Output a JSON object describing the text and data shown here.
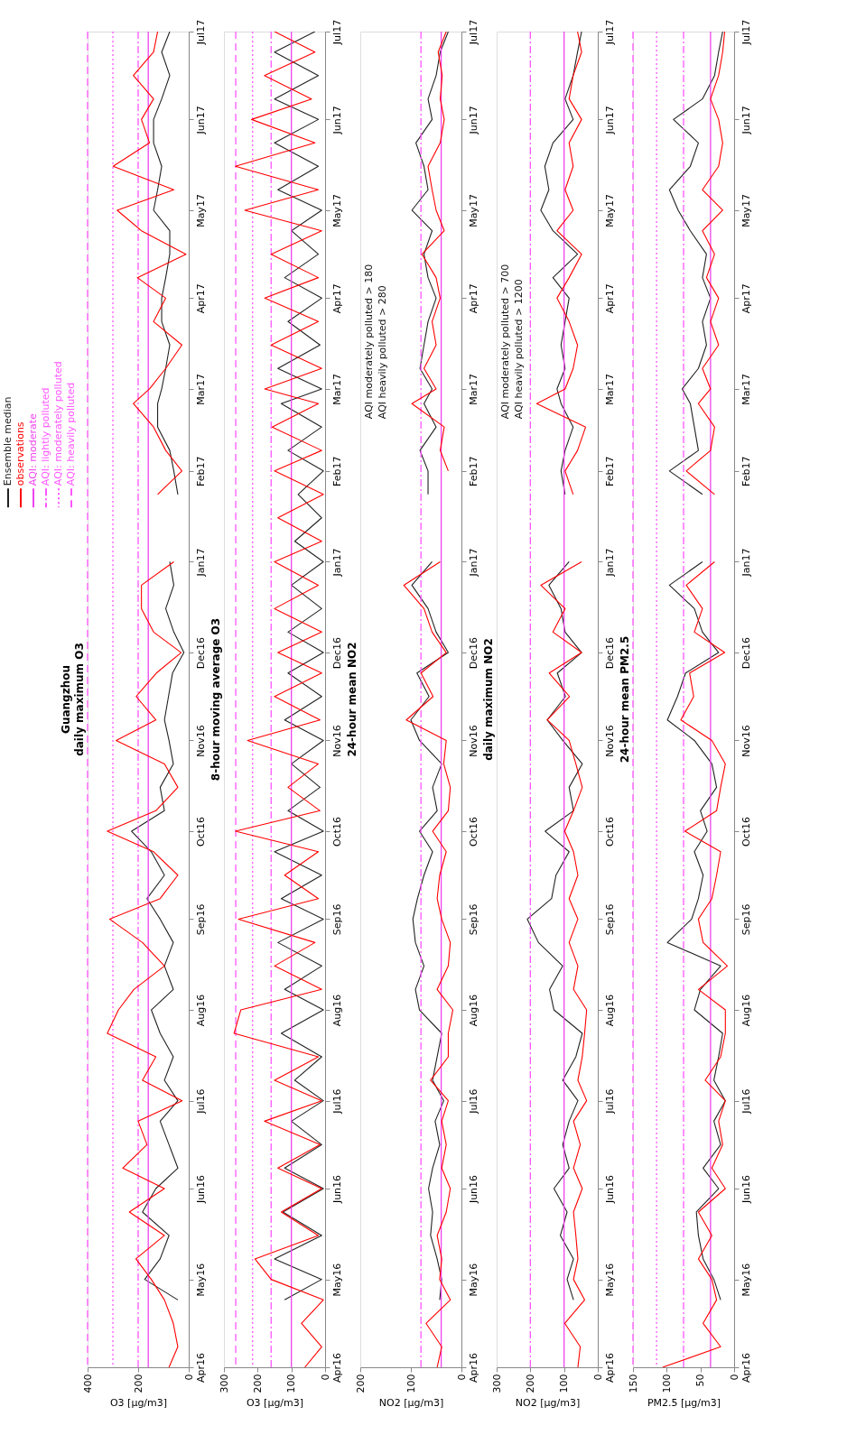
{
  "chart_data": [
    {
      "type": "line",
      "orientation": "horizontal",
      "title": "Guangzhou",
      "subtitle": "daily maximum O3",
      "xlabel": "O3 [µg/m3]",
      "legend": "top left",
      "grid": false,
      "x": [
        "2016-04-01",
        "2016-04-08",
        "2016-04-16",
        "2016-04-24",
        "2016-05-01",
        "2016-05-08",
        "2016-05-16",
        "2016-05-24",
        "2016-06-01",
        "2016-06-08",
        "2016-06-16",
        "2016-06-24",
        "2016-07-01",
        "2016-07-08",
        "2016-07-16",
        "2016-07-24",
        "2016-08-01",
        "2016-08-08",
        "2016-08-16",
        "2016-08-24",
        "2016-09-01",
        "2016-09-08",
        "2016-09-16",
        "2016-09-24",
        "2016-10-01",
        "2016-10-08",
        "2016-10-16",
        "2016-10-24",
        "2016-11-01",
        "2016-11-08",
        "2016-11-16",
        "2016-11-24",
        "2016-12-01",
        "2016-12-08",
        "2016-12-16",
        "2016-12-24",
        "2017-01-01",
        "2017-01-08",
        "2017-01-16",
        "2017-01-24",
        "2017-02-01",
        "2017-02-08",
        "2017-02-16",
        "2017-02-24",
        "2017-03-01",
        "2017-03-08",
        "2017-03-16",
        "2017-03-24",
        "2017-04-01",
        "2017-04-08",
        "2017-04-16",
        "2017-04-24",
        "2017-05-01",
        "2017-05-08",
        "2017-05-16",
        "2017-05-24",
        "2017-06-01",
        "2017-06-08",
        "2017-06-16",
        "2017-06-24",
        "2017-07-01"
      ],
      "ylim": [
        "2016-04-01",
        "2017-07-01"
      ],
      "yticks": [
        {
          "value": "2016-04-01",
          "label": "Apr16"
        },
        {
          "value": "2016-05-01",
          "label": "May16"
        },
        {
          "value": "2016-06-01",
          "label": "Jun16"
        },
        {
          "value": "2016-07-01",
          "label": "Jul16"
        },
        {
          "value": "2016-08-01",
          "label": "Aug16"
        },
        {
          "value": "2016-09-01",
          "label": "Sep16"
        },
        {
          "value": "2016-10-01",
          "label": "Oct16"
        },
        {
          "value": "2016-11-01",
          "label": "Nov16"
        },
        {
          "value": "2016-12-01",
          "label": "Dec16"
        },
        {
          "value": "2017-01-01",
          "label": "Jan17"
        },
        {
          "value": "2017-02-01",
          "label": "Feb17"
        },
        {
          "value": "2017-03-01",
          "label": "Mar17"
        },
        {
          "value": "2017-04-01",
          "label": "Apr17"
        },
        {
          "value": "2017-05-01",
          "label": "May17"
        },
        {
          "value": "2017-06-01",
          "label": "Jun17"
        },
        {
          "value": "2017-07-01",
          "label": "Jul17"
        }
      ],
      "xlim": [
        400,
        0
      ],
      "xticks": [
        400,
        200,
        0
      ],
      "ref_lines": [
        {
          "axis": "x",
          "value": 160,
          "label": "AQI: moderate",
          "color": "#ee44ee",
          "line_style": "solid"
        },
        {
          "axis": "x",
          "value": 200,
          "label": "AQI: lightly polluted",
          "color": "#ff55ff",
          "line_style": "dashdot"
        },
        {
          "axis": "x",
          "value": 300,
          "label": "AQI: moderately polluted",
          "color": "#ff55ff",
          "line_style": "dotted"
        },
        {
          "axis": "x",
          "value": 400,
          "label": "AQI: heavily polluted",
          "color": "#ff55ff",
          "line_style": "dashed"
        }
      ],
      "series": [
        {
          "name": "Ensemble median",
          "color": "#222222",
          "values": [
            null,
            null,
            null,
            43,
            174,
            113,
            78,
            183,
            130,
            43,
            78,
            113,
            43,
            96,
            61,
            113,
            148,
            61,
            96,
            61,
            113,
            165,
            96,
            148,
            226,
            96,
            113,
            61,
            78,
            96,
            80,
            64,
            19,
            59,
            91,
            59,
            75,
            null,
            null,
            43,
            59,
            75,
            123,
            123,
            107,
            91,
            75,
            107,
            107,
            91,
            75,
            75,
            139,
            123,
            107,
            139,
            139,
            107,
            75,
            107,
            75
          ]
        },
        {
          "name": "observations",
          "color": "#ff0000",
          "values": [
            78,
            43,
            61,
            96,
            148,
            209,
            96,
            235,
            96,
            261,
            165,
            200,
            26,
            183,
            130,
            322,
            278,
            217,
            96,
            183,
            313,
            113,
            43,
            139,
            322,
            130,
            43,
            96,
            287,
            130,
            208,
            128,
            30,
            139,
            187,
            187,
            59,
            null,
            null,
            123,
            27,
            91,
            139,
            219,
            155,
            91,
            27,
            139,
            91,
            203,
            11,
            187,
            283,
            59,
            299,
            155,
            187,
            139,
            219,
            139,
            123
          ]
        }
      ]
    },
    {
      "type": "line",
      "orientation": "horizontal",
      "title": "8-hour moving average O3",
      "xlabel": "O3 [µg/m3]",
      "grid": false,
      "x": [
        "2016-04-01",
        "2016-04-08",
        "2016-04-16",
        "2016-04-24",
        "2016-05-01",
        "2016-05-08",
        "2016-05-16",
        "2016-05-24",
        "2016-06-01",
        "2016-06-08",
        "2016-06-16",
        "2016-06-24",
        "2016-07-01",
        "2016-07-08",
        "2016-07-16",
        "2016-07-24",
        "2016-08-01",
        "2016-08-08",
        "2016-08-16",
        "2016-08-24",
        "2016-09-01",
        "2016-09-08",
        "2016-09-16",
        "2016-09-24",
        "2016-10-01",
        "2016-10-08",
        "2016-10-16",
        "2016-10-24",
        "2016-11-01",
        "2016-11-08",
        "2016-11-16",
        "2016-11-24",
        "2016-12-01",
        "2016-12-08",
        "2016-12-16",
        "2016-12-24",
        "2017-01-01",
        "2017-01-08",
        "2017-01-16",
        "2017-01-24",
        "2017-02-01",
        "2017-02-08",
        "2017-02-16",
        "2017-02-24",
        "2017-03-01",
        "2017-03-08",
        "2017-03-16",
        "2017-03-24",
        "2017-04-01",
        "2017-04-08",
        "2017-04-16",
        "2017-04-24",
        "2017-05-01",
        "2017-05-08",
        "2017-05-16",
        "2017-05-24",
        "2017-06-01",
        "2017-06-08",
        "2017-06-16",
        "2017-06-24",
        "2017-07-01"
      ],
      "ylim": [
        "2016-04-01",
        "2017-07-01"
      ],
      "yticks": [
        {
          "value": "2016-04-01",
          "label": "Apr16"
        },
        {
          "value": "2016-05-01",
          "label": "May16"
        },
        {
          "value": "2016-06-01",
          "label": "Jun16"
        },
        {
          "value": "2016-07-01",
          "label": "Jul16"
        },
        {
          "value": "2016-08-01",
          "label": "Aug16"
        },
        {
          "value": "2016-09-01",
          "label": "Sep16"
        },
        {
          "value": "2016-10-01",
          "label": "Oct16"
        },
        {
          "value": "2016-11-01",
          "label": "Nov16"
        },
        {
          "value": "2016-12-01",
          "label": "Dec16"
        },
        {
          "value": "2017-01-01",
          "label": "Jan17"
        },
        {
          "value": "2017-02-01",
          "label": "Feb17"
        },
        {
          "value": "2017-03-01",
          "label": "Mar17"
        },
        {
          "value": "2017-04-01",
          "label": "Apr17"
        },
        {
          "value": "2017-05-01",
          "label": "May17"
        },
        {
          "value": "2017-06-01",
          "label": "Jun17"
        },
        {
          "value": "2017-07-01",
          "label": "Jul17"
        }
      ],
      "xlim": [
        300,
        0
      ],
      "xticks": [
        300,
        200,
        100,
        0
      ],
      "ref_lines": [
        {
          "axis": "x",
          "value": 100,
          "color": "#ee44ee",
          "line_style": "solid"
        },
        {
          "axis": "x",
          "value": 160,
          "color": "#ff55ff",
          "line_style": "dashdot"
        },
        {
          "axis": "x",
          "value": 215,
          "color": "#ff55ff",
          "line_style": "dotted"
        },
        {
          "axis": "x",
          "value": 265,
          "color": "#ff55ff",
          "line_style": "dashed"
        }
      ],
      "series": [
        {
          "color": "#222222",
          "values": [
            null,
            null,
            null,
            120,
            10,
            150,
            10,
            125,
            5,
            120,
            10,
            100,
            5,
            90,
            10,
            130,
            5,
            120,
            10,
            140,
            5,
            130,
            10,
            150,
            5,
            110,
            15,
            100,
            5,
            120,
            10,
            110,
            5,
            110,
            10,
            100,
            5,
            90,
            10,
            80,
            5,
            110,
            10,
            130,
            10,
            140,
            15,
            110,
            10,
            120,
            20,
            100,
            10,
            140,
            20,
            150,
            20,
            150,
            20,
            150,
            30
          ]
        },
        {
          "color": "#ff0000",
          "values": [
            60,
            10,
            70,
            5,
            160,
            208,
            20,
            130,
            10,
            140,
            15,
            180,
            10,
            150,
            20,
            270,
            250,
            10,
            150,
            30,
            257,
            20,
            120,
            20,
            266,
            15,
            110,
            20,
            230,
            15,
            150,
            10,
            140,
            10,
            150,
            20,
            150,
            10,
            140,
            5,
            150,
            10,
            157,
            20,
            179,
            10,
            160,
            20,
            179,
            20,
            160,
            10,
            238,
            20,
            266,
            30,
            218,
            40,
            180,
            30,
            150
          ]
        }
      ]
    },
    {
      "type": "line",
      "orientation": "horizontal",
      "title": "24-hour mean NO2",
      "xlabel": "NO2 [µg/m3]",
      "grid": false,
      "annotations": [
        "AQI moderately polluted > 180",
        "AQI heavily polluted > 280"
      ],
      "x": [
        "2016-04-01",
        "2016-04-08",
        "2016-04-16",
        "2016-04-24",
        "2016-05-01",
        "2016-05-08",
        "2016-05-16",
        "2016-05-24",
        "2016-06-01",
        "2016-06-08",
        "2016-06-16",
        "2016-06-24",
        "2016-07-01",
        "2016-07-08",
        "2016-07-16",
        "2016-07-24",
        "2016-08-01",
        "2016-08-08",
        "2016-08-16",
        "2016-08-24",
        "2016-09-01",
        "2016-09-08",
        "2016-09-16",
        "2016-09-24",
        "2016-10-01",
        "2016-10-08",
        "2016-10-16",
        "2016-10-24",
        "2016-11-01",
        "2016-11-08",
        "2016-11-16",
        "2016-11-24",
        "2016-12-01",
        "2016-12-08",
        "2016-12-16",
        "2016-12-24",
        "2017-01-01",
        "2017-01-08",
        "2017-01-16",
        "2017-01-24",
        "2017-02-01",
        "2017-02-08",
        "2017-02-16",
        "2017-02-24",
        "2017-03-01",
        "2017-03-08",
        "2017-03-16",
        "2017-03-24",
        "2017-04-01",
        "2017-04-08",
        "2017-04-16",
        "2017-04-24",
        "2017-05-01",
        "2017-05-08",
        "2017-05-16",
        "2017-05-24",
        "2017-06-01",
        "2017-06-08",
        "2017-06-16",
        "2017-06-24",
        "2017-07-01"
      ],
      "ylim": [
        "2016-04-01",
        "2017-07-01"
      ],
      "yticks": [
        {
          "value": "2016-04-01",
          "label": "Apr16"
        },
        {
          "value": "2016-05-01",
          "label": "May16"
        },
        {
          "value": "2016-06-01",
          "label": "Jun16"
        },
        {
          "value": "2016-07-01",
          "label": "Jul16"
        },
        {
          "value": "2016-08-01",
          "label": "Aug16"
        },
        {
          "value": "2016-09-01",
          "label": "Sep16"
        },
        {
          "value": "2016-10-01",
          "label": "Oct16"
        },
        {
          "value": "2016-11-01",
          "label": "Nov16"
        },
        {
          "value": "2016-12-01",
          "label": "Dec16"
        },
        {
          "value": "2017-01-01",
          "label": "Jan17"
        },
        {
          "value": "2017-02-01",
          "label": "Feb17"
        },
        {
          "value": "2017-03-01",
          "label": "Mar17"
        },
        {
          "value": "2017-04-01",
          "label": "Apr17"
        },
        {
          "value": "2017-05-01",
          "label": "May17"
        },
        {
          "value": "2017-06-01",
          "label": "Jun17"
        },
        {
          "value": "2017-07-01",
          "label": "Jul17"
        }
      ],
      "xlim": [
        200,
        0
      ],
      "xticks": [
        200,
        100,
        0
      ],
      "ref_lines": [
        {
          "axis": "x",
          "value": 40,
          "color": "#ee44ee",
          "line_style": "solid"
        },
        {
          "axis": "x",
          "value": 80,
          "color": "#ff55ff",
          "line_style": "dashdot"
        }
      ],
      "series": [
        {
          "color": "#222222",
          "values": [
            null,
            null,
            null,
            43,
            39,
            48,
            61,
            57,
            65,
            57,
            43,
            52,
            35,
            57,
            48,
            39,
            83,
            91,
            74,
            91,
            96,
            87,
            74,
            57,
            83,
            48,
            57,
            39,
            83,
            100,
            64,
            88,
            26,
            50,
            66,
            98,
            58,
            null,
            null,
            66,
            66,
            82,
            50,
            74,
            58,
            82,
            74,
            66,
            50,
            66,
            74,
            58,
            98,
            66,
            74,
            90,
            58,
            66,
            50,
            42,
            26
          ]
        },
        {
          "color": "#ff0000",
          "values": [
            48,
            39,
            70,
            22,
            43,
            39,
            48,
            30,
            22,
            39,
            30,
            39,
            26,
            61,
            26,
            26,
            17,
            48,
            26,
            22,
            39,
            48,
            43,
            30,
            57,
            26,
            22,
            35,
            30,
            109,
            56,
            80,
            30,
            58,
            74,
            114,
            42,
            null,
            null,
            null,
            26,
            42,
            34,
            98,
            50,
            74,
            50,
            58,
            42,
            50,
            78,
            34,
            50,
            58,
            66,
            42,
            34,
            42,
            38,
            46,
            30
          ]
        }
      ]
    },
    {
      "type": "line",
      "orientation": "horizontal",
      "title": "daily maximum NO2",
      "xlabel": "NO2 [µg/m3]",
      "grid": false,
      "annotations": [
        "AQI moderately polluted > 700",
        "AQI heavily polluted > 1200"
      ],
      "x": [
        "2016-04-01",
        "2016-04-08",
        "2016-04-16",
        "2016-04-24",
        "2016-05-01",
        "2016-05-08",
        "2016-05-16",
        "2016-05-24",
        "2016-06-01",
        "2016-06-08",
        "2016-06-16",
        "2016-06-24",
        "2016-07-01",
        "2016-07-08",
        "2016-07-16",
        "2016-07-24",
        "2016-08-01",
        "2016-08-08",
        "2016-08-16",
        "2016-08-24",
        "2016-09-01",
        "2016-09-08",
        "2016-09-16",
        "2016-09-24",
        "2016-10-01",
        "2016-10-08",
        "2016-10-16",
        "2016-10-24",
        "2016-11-01",
        "2016-11-08",
        "2016-11-16",
        "2016-11-24",
        "2016-12-01",
        "2016-12-08",
        "2016-12-16",
        "2016-12-24",
        "2017-01-01",
        "2017-01-08",
        "2017-01-16",
        "2017-01-24",
        "2017-02-01",
        "2017-02-08",
        "2017-02-16",
        "2017-02-24",
        "2017-03-01",
        "2017-03-08",
        "2017-03-16",
        "2017-03-24",
        "2017-04-01",
        "2017-04-08",
        "2017-04-16",
        "2017-04-24",
        "2017-05-01",
        "2017-05-08",
        "2017-05-16",
        "2017-05-24",
        "2017-06-01",
        "2017-06-08",
        "2017-06-16",
        "2017-06-24",
        "2017-07-01"
      ],
      "ylim": [
        "2016-04-01",
        "2017-07-01"
      ],
      "yticks": [
        {
          "value": "2016-04-01",
          "label": "Apr16"
        },
        {
          "value": "2016-05-01",
          "label": "May16"
        },
        {
          "value": "2016-06-01",
          "label": "Jun16"
        },
        {
          "value": "2016-07-01",
          "label": "Jul16"
        },
        {
          "value": "2016-08-01",
          "label": "Aug16"
        },
        {
          "value": "2016-09-01",
          "label": "Sep16"
        },
        {
          "value": "2016-10-01",
          "label": "Oct16"
        },
        {
          "value": "2016-11-01",
          "label": "Nov16"
        },
        {
          "value": "2016-12-01",
          "label": "Dec16"
        },
        {
          "value": "2017-01-01",
          "label": "Jan17"
        },
        {
          "value": "2017-02-01",
          "label": "Feb17"
        },
        {
          "value": "2017-03-01",
          "label": "Mar17"
        },
        {
          "value": "2017-04-01",
          "label": "Apr17"
        },
        {
          "value": "2017-05-01",
          "label": "May17"
        },
        {
          "value": "2017-06-01",
          "label": "Jun17"
        },
        {
          "value": "2017-07-01",
          "label": "Jul17"
        }
      ],
      "xlim": [
        300,
        0
      ],
      "xticks": [
        300,
        200,
        100,
        0
      ],
      "ref_lines": [
        {
          "axis": "x",
          "value": 100,
          "color": "#ee44ee",
          "line_style": "solid"
        },
        {
          "axis": "x",
          "value": 200,
          "color": "#ff55ff",
          "line_style": "dashdot"
        }
      ],
      "series": [
        {
          "color": "#222222",
          "values": [
            null,
            null,
            null,
            72,
            91,
            72,
            111,
            91,
            130,
            85,
            104,
            85,
            59,
            104,
            65,
            46,
            130,
            143,
            104,
            176,
            209,
            137,
            124,
            85,
            156,
            72,
            85,
            46,
            104,
            150,
            96,
            120,
            48,
            97,
            109,
            145,
            85,
            null,
            null,
            97,
            109,
            97,
            73,
            109,
            121,
            97,
            109,
            97,
            85,
            133,
            60,
            133,
            169,
            145,
            157,
            133,
            73,
            97,
            73,
            60,
            48
          ]
        },
        {
          "color": "#ff0000",
          "values": [
            59,
            52,
            98,
            39,
            72,
            59,
            65,
            72,
            46,
            72,
            52,
            72,
            33,
            59,
            46,
            39,
            33,
            72,
            59,
            85,
            59,
            85,
            59,
            72,
            98,
            72,
            46,
            65,
            85,
            150,
            84,
            144,
            48,
            133,
            97,
            169,
            48,
            null,
            null,
            73,
            97,
            60,
            36,
            181,
            97,
            73,
            60,
            85,
            121,
            85,
            48,
            121,
            73,
            97,
            73,
            85,
            48,
            85,
            73,
            48,
            60
          ]
        }
      ]
    },
    {
      "type": "line",
      "orientation": "horizontal",
      "title": "24-hour mean PM2.5",
      "xlabel": "PM2.5 [µg/m3]",
      "grid": false,
      "x": [
        "2016-04-01",
        "2016-04-08",
        "2016-04-16",
        "2016-04-24",
        "2016-05-01",
        "2016-05-08",
        "2016-05-16",
        "2016-05-24",
        "2016-06-01",
        "2016-06-08",
        "2016-06-16",
        "2016-06-24",
        "2016-07-01",
        "2016-07-08",
        "2016-07-16",
        "2016-07-24",
        "2016-08-01",
        "2016-08-08",
        "2016-08-16",
        "2016-08-24",
        "2016-09-01",
        "2016-09-08",
        "2016-09-16",
        "2016-09-24",
        "2016-10-01",
        "2016-10-08",
        "2016-10-16",
        "2016-10-24",
        "2016-11-01",
        "2016-11-08",
        "2016-11-16",
        "2016-11-24",
        "2016-12-01",
        "2016-12-08",
        "2016-12-16",
        "2016-12-24",
        "2017-01-01",
        "2017-01-08",
        "2017-01-16",
        "2017-01-24",
        "2017-02-01",
        "2017-02-08",
        "2017-02-16",
        "2017-02-24",
        "2017-03-01",
        "2017-03-08",
        "2017-03-16",
        "2017-03-24",
        "2017-04-01",
        "2017-04-08",
        "2017-04-16",
        "2017-04-24",
        "2017-05-01",
        "2017-05-08",
        "2017-05-16",
        "2017-05-24",
        "2017-06-01",
        "2017-06-08",
        "2017-06-16",
        "2017-06-24",
        "2017-07-01"
      ],
      "ylim": [
        "2016-04-01",
        "2017-07-01"
      ],
      "yticks": [
        {
          "value": "2016-04-01",
          "label": "Apr16"
        },
        {
          "value": "2016-05-01",
          "label": "May16"
        },
        {
          "value": "2016-06-01",
          "label": "Jun16"
        },
        {
          "value": "2016-07-01",
          "label": "Jul16"
        },
        {
          "value": "2016-08-01",
          "label": "Aug16"
        },
        {
          "value": "2016-09-01",
          "label": "Sep16"
        },
        {
          "value": "2016-10-01",
          "label": "Oct16"
        },
        {
          "value": "2016-11-01",
          "label": "Nov16"
        },
        {
          "value": "2016-12-01",
          "label": "Dec16"
        },
        {
          "value": "2017-01-01",
          "label": "Jan17"
        },
        {
          "value": "2017-02-01",
          "label": "Feb17"
        },
        {
          "value": "2017-03-01",
          "label": "Mar17"
        },
        {
          "value": "2017-04-01",
          "label": "Apr17"
        },
        {
          "value": "2017-05-01",
          "label": "May17"
        },
        {
          "value": "2017-06-01",
          "label": "Jun17"
        },
        {
          "value": "2017-07-01",
          "label": "Jul17"
        }
      ],
      "xlim": [
        150,
        0
      ],
      "xticks": [
        150,
        100,
        50,
        0
      ],
      "ref_lines": [
        {
          "axis": "x",
          "value": 35,
          "color": "#ee44ee",
          "line_style": "solid"
        },
        {
          "axis": "x",
          "value": 75,
          "color": "#ff55ff",
          "line_style": "dashdot"
        },
        {
          "axis": "x",
          "value": 115,
          "color": "#ff55ff",
          "line_style": "dotted"
        },
        {
          "axis": "x",
          "value": 150,
          "color": "#ff55ff",
          "line_style": "dashed"
        }
      ],
      "series": [
        {
          "color": "#222222",
          "values": [
            null,
            null,
            null,
            20,
            30,
            46,
            53,
            56,
            23,
            46,
            20,
            30,
            13,
            30,
            23,
            17,
            59,
            50,
            20,
            99,
            63,
            53,
            46,
            59,
            40,
            50,
            26,
            33,
            59,
            99,
            84,
            72,
            23,
            47,
            59,
            96,
            47,
            null,
            null,
            47,
            96,
            53,
            59,
            65,
            77,
            53,
            41,
            47,
            35,
            47,
            41,
            65,
            83,
            96,
            65,
            53,
            90,
            47,
            29,
            23,
            17
          ]
        },
        {
          "color": "#ff0000",
          "values": [
            106,
            20,
            46,
            26,
            33,
            53,
            33,
            53,
            13,
            33,
            17,
            23,
            13,
            43,
            20,
            13,
            13,
            53,
            10,
            46,
            53,
            33,
            26,
            20,
            73,
            26,
            20,
            13,
            33,
            79,
            60,
            66,
            14,
            59,
            47,
            71,
            29,
            null,
            null,
            29,
            71,
            35,
            29,
            53,
            35,
            47,
            23,
            35,
            23,
            41,
            29,
            47,
            17,
            47,
            23,
            17,
            23,
            35,
            23,
            17,
            14
          ]
        }
      ]
    }
  ]
}
